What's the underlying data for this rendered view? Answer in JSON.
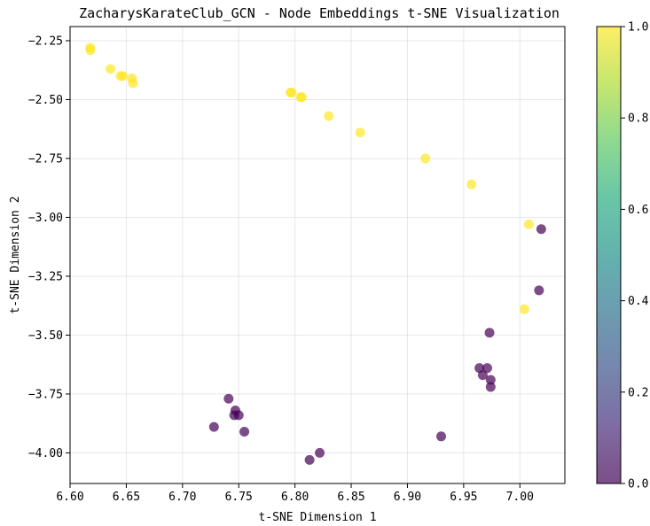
{
  "chart_data": {
    "type": "scatter",
    "title": "ZacharysKarateClub_GCN - Node Embeddings t-SNE Visualization",
    "xlabel": "t-SNE Dimension 1",
    "ylabel": "t-SNE Dimension 2",
    "xlim": [
      6.6,
      7.04
    ],
    "ylim": [
      -4.13,
      -2.19
    ],
    "xticks": [
      6.6,
      6.65,
      6.7,
      6.75,
      6.8,
      6.85,
      6.9,
      6.95,
      7.0
    ],
    "yticks": [
      -2.25,
      -2.5,
      -2.75,
      -3.0,
      -3.25,
      -3.5,
      -3.75,
      -4.0
    ],
    "xtick_labels": [
      "6.60",
      "6.65",
      "6.70",
      "6.75",
      "6.80",
      "6.85",
      "6.90",
      "6.95",
      "7.00"
    ],
    "ytick_labels": [
      "−2.25",
      "−2.50",
      "−2.75",
      "−3.00",
      "−3.25",
      "−3.50",
      "−3.75",
      "−4.00"
    ],
    "grid": true,
    "colormap": "viridis",
    "colorbar": {
      "range": [
        0.0,
        1.0
      ],
      "ticks": [
        0.0,
        0.2,
        0.4,
        0.6,
        0.8,
        1.0
      ],
      "tick_labels": [
        "0.0",
        "0.2",
        "0.4",
        "0.6",
        "0.8",
        "1.0"
      ],
      "stops": [
        "#440154",
        "#472d7b",
        "#3b528b",
        "#2c728e",
        "#21918c",
        "#28ae80",
        "#5ec962",
        "#addc30",
        "#fde725"
      ]
    },
    "marker_alpha": 0.7,
    "series": [
      {
        "class": 1,
        "color": "#fde725",
        "points": [
          [
            6.618,
            -2.28
          ],
          [
            6.618,
            -2.29
          ],
          [
            6.636,
            -2.37
          ],
          [
            6.645,
            -2.4
          ],
          [
            6.647,
            -2.4
          ],
          [
            6.655,
            -2.41
          ],
          [
            6.656,
            -2.43
          ],
          [
            6.796,
            -2.47
          ],
          [
            6.797,
            -2.47
          ],
          [
            6.805,
            -2.49
          ],
          [
            6.806,
            -2.49
          ],
          [
            6.83,
            -2.57
          ],
          [
            6.858,
            -2.64
          ],
          [
            6.916,
            -2.75
          ],
          [
            6.957,
            -2.86
          ],
          [
            7.008,
            -3.03
          ],
          [
            7.004,
            -3.39
          ]
        ]
      },
      {
        "class": 0,
        "color": "#440154",
        "points": [
          [
            7.019,
            -3.05
          ],
          [
            7.017,
            -3.31
          ],
          [
            6.973,
            -3.49
          ],
          [
            6.964,
            -3.64
          ],
          [
            6.971,
            -3.64
          ],
          [
            6.967,
            -3.67
          ],
          [
            6.974,
            -3.69
          ],
          [
            6.974,
            -3.72
          ],
          [
            6.741,
            -3.77
          ],
          [
            6.747,
            -3.82
          ],
          [
            6.746,
            -3.84
          ],
          [
            6.75,
            -3.84
          ],
          [
            6.728,
            -3.89
          ],
          [
            6.755,
            -3.91
          ],
          [
            6.93,
            -3.93
          ],
          [
            6.822,
            -4.0
          ],
          [
            6.813,
            -4.03
          ]
        ]
      }
    ]
  }
}
